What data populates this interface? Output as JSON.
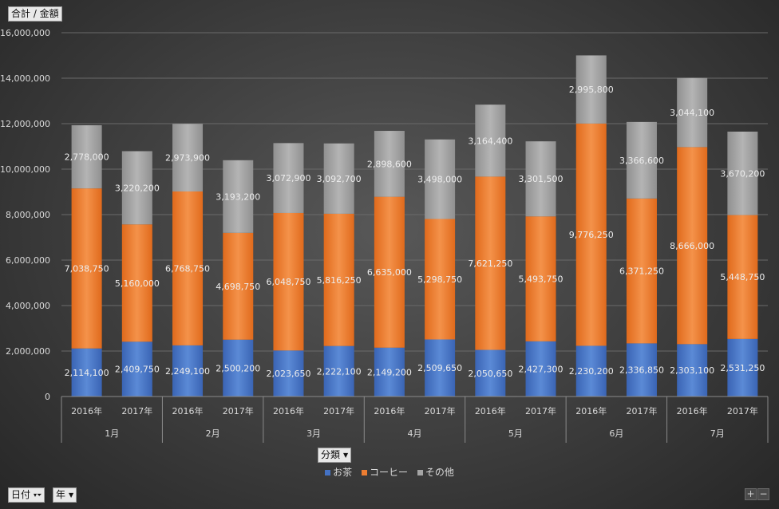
{
  "field_buttons": {
    "value": "合計 / 金額",
    "category": "分類",
    "date": "日付",
    "year": "年"
  },
  "zoom": {
    "plus": "+",
    "minus": "−"
  },
  "chart_data": {
    "type": "bar",
    "stacked": true,
    "ylim": [
      0,
      16000000
    ],
    "yticks": [
      0,
      2000000,
      4000000,
      6000000,
      8000000,
      10000000,
      12000000,
      14000000,
      16000000
    ],
    "ytick_labels": [
      "0",
      "2,000,000",
      "4,000,000",
      "6,000,000",
      "8,000,000",
      "10,000,000",
      "12,000,000",
      "14,000,000",
      "16,000,000"
    ],
    "months": [
      "1月",
      "2月",
      "3月",
      "4月",
      "5月",
      "6月",
      "7月"
    ],
    "years": [
      "2016年",
      "2017年"
    ],
    "categories": [
      "1月 2016年",
      "1月 2017年",
      "2月 2016年",
      "2月 2017年",
      "3月 2016年",
      "3月 2017年",
      "4月 2016年",
      "4月 2017年",
      "5月 2016年",
      "5月 2017年",
      "6月 2016年",
      "6月 2017年",
      "7月 2016年",
      "7月 2017年"
    ],
    "series": [
      {
        "name": "お茶",
        "color": "#4472c4",
        "values": [
          2114100,
          2409750,
          2249100,
          2500200,
          2023650,
          2222100,
          2149200,
          2509650,
          2050650,
          2427300,
          2230200,
          2336850,
          2303100,
          2531250
        ],
        "labels": [
          "2,114,100",
          "2,409,750",
          "2,249,100",
          "2,500,200",
          "2,023,650",
          "2,222,100",
          "2,149,200",
          "2,509,650",
          "2,050,650",
          "2,427,300",
          "2,230,200",
          "2,336,850",
          "2,303,100",
          "2,531,250"
        ]
      },
      {
        "name": "コーヒー",
        "color": "#ed7d31",
        "values": [
          7038750,
          5160000,
          6768750,
          4698750,
          6048750,
          5816250,
          6635000,
          5298750,
          7621250,
          5493750,
          9776250,
          6371250,
          8666000,
          5448750
        ],
        "labels": [
          "7,038,750",
          "5,160,000",
          "6,768,750",
          "4,698,750",
          "6,048,750",
          "5,816,250",
          "6,635,000",
          "5,298,750",
          "7,621,250",
          "5,493,750",
          "9,776,250",
          "6,371,250",
          "8,666,000",
          "5,448,750"
        ]
      },
      {
        "name": "その他",
        "color": "#a5a5a5",
        "values": [
          2778000,
          3220200,
          2973900,
          3193200,
          3072900,
          3092700,
          2898600,
          3498000,
          3164400,
          3301500,
          2995800,
          3366600,
          3044100,
          3670200
        ],
        "labels": [
          "2,778,000",
          "3,220,200",
          "2,973,900",
          "3,193,200",
          "3,072,900",
          "3,092,700",
          "2,898,600",
          "3,498,000",
          "3,164,400",
          "3,301,500",
          "2,995,800",
          "3,366,600",
          "3,044,100",
          "3,670,200"
        ]
      }
    ],
    "legend": [
      "お茶",
      "コーヒー",
      "その他"
    ],
    "legend_position": "bottom"
  }
}
